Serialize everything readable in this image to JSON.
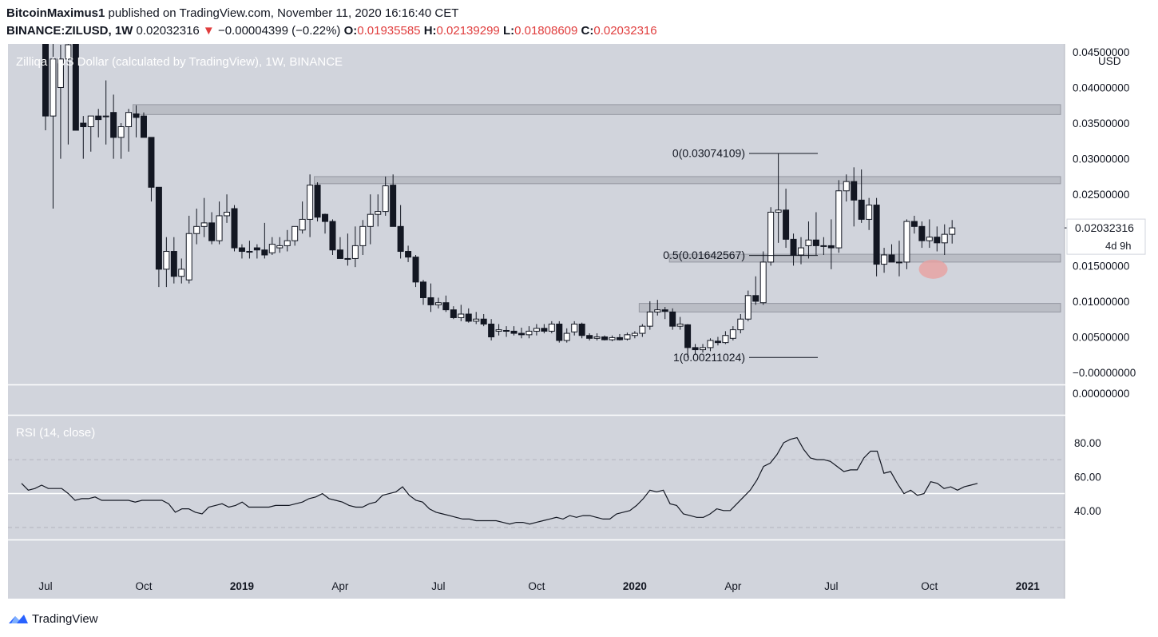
{
  "header": {
    "publisher": "BitcoinMaximus1",
    "published_text": "published on TradingView.com, November 11, 2020 16:16:40 CET",
    "symbol": "BINANCE:ZILUSD, 1W",
    "last": "0.02032316",
    "change_arrow": "▼",
    "change": "−0.00004399 (−0.22%)",
    "o_label": "O:",
    "o_value": "0.01935585",
    "h_label": "H:",
    "h_value": "0.02139299",
    "l_label": "L:",
    "l_value": "0.01808609",
    "c_label": "C:",
    "c_value": "0.02032316"
  },
  "footer": {
    "brand": "TradingView",
    "icon": "tradingview-logo-icon"
  },
  "chart_data": [
    {
      "type": "candlestick",
      "title": "Zilliqa / US Dollar (calculated by TradingView), 1W, BINANCE",
      "y_unit": "USD",
      "ylim": [
        -0.001,
        0.046
      ],
      "y_ticks": [
        0.045,
        0.04,
        0.035,
        0.03,
        0.025,
        0.02,
        0.015,
        0.01,
        0.005,
        0.0
      ],
      "y_tick_labels": [
        "0.04500000",
        "0.04000000",
        "0.03500000",
        "0.03000000",
        "0.02500000",
        "0.02000000",
        "0.01500000",
        "0.01000000",
        "0.00500000",
        "−0.00000000"
      ],
      "second_pane_label": "0.00000000",
      "current_price_label": "0.02032316",
      "countdown_label": "4d 9h",
      "x_ticks": [
        "Jul",
        "Oct",
        "2019",
        "Apr",
        "Jul",
        "Oct",
        "2020",
        "Apr",
        "Jul",
        "Oct",
        "2021"
      ],
      "x_tick_weeks": [
        0,
        13,
        26,
        39,
        52,
        65,
        78,
        91,
        104,
        117,
        130
      ],
      "candles": [
        [
          0.049,
          0.052,
          0.034,
          0.036
        ],
        [
          0.036,
          0.049,
          0.023,
          0.044
        ],
        [
          0.04,
          0.046,
          0.03,
          0.044
        ],
        [
          0.044,
          0.052,
          0.032,
          0.046
        ],
        [
          0.052,
          0.056,
          0.034,
          0.034
        ],
        [
          0.035,
          0.036,
          0.03,
          0.0345
        ],
        [
          0.0345,
          0.036,
          0.031,
          0.036
        ],
        [
          0.036,
          0.037,
          0.033,
          0.0355
        ],
        [
          0.036,
          0.041,
          0.032,
          0.036
        ],
        [
          0.0365,
          0.039,
          0.03,
          0.033
        ],
        [
          0.033,
          0.035,
          0.03,
          0.0345
        ],
        [
          0.0345,
          0.037,
          0.031,
          0.0365
        ],
        [
          0.0363,
          0.0375,
          0.033,
          0.0358
        ],
        [
          0.036,
          0.0365,
          0.033,
          0.033
        ],
        [
          0.033,
          0.033,
          0.024,
          0.026
        ],
        [
          0.026,
          0.026,
          0.012,
          0.0145
        ],
        [
          0.0145,
          0.019,
          0.012,
          0.017
        ],
        [
          0.017,
          0.019,
          0.0125,
          0.0135
        ],
        [
          0.0135,
          0.016,
          0.0125,
          0.0145
        ],
        [
          0.013,
          0.022,
          0.0125,
          0.0195
        ],
        [
          0.0195,
          0.023,
          0.018,
          0.0205
        ],
        [
          0.0205,
          0.0245,
          0.019,
          0.021
        ],
        [
          0.021,
          0.0225,
          0.018,
          0.0185
        ],
        [
          0.0185,
          0.024,
          0.018,
          0.022
        ],
        [
          0.022,
          0.025,
          0.021,
          0.0225
        ],
        [
          0.023,
          0.0235,
          0.017,
          0.0175
        ],
        [
          0.0175,
          0.018,
          0.016,
          0.017
        ],
        [
          0.017,
          0.0185,
          0.016,
          0.017
        ],
        [
          0.0175,
          0.018,
          0.016,
          0.0172
        ],
        [
          0.0172,
          0.021,
          0.016,
          0.0165
        ],
        [
          0.0168,
          0.019,
          0.0165,
          0.018
        ],
        [
          0.0175,
          0.019,
          0.0168,
          0.0178
        ],
        [
          0.0178,
          0.02,
          0.017,
          0.0185
        ],
        [
          0.0185,
          0.0205,
          0.0178,
          0.0205
        ],
        [
          0.02,
          0.024,
          0.0195,
          0.0215
        ],
        [
          0.0215,
          0.0278,
          0.019,
          0.0263
        ],
        [
          0.0263,
          0.0267,
          0.0212,
          0.0218
        ],
        [
          0.0222,
          0.0223,
          0.0195,
          0.0212
        ],
        [
          0.0212,
          0.0215,
          0.0165,
          0.0172
        ],
        [
          0.0172,
          0.019,
          0.016,
          0.016
        ],
        [
          0.016,
          0.0195,
          0.015,
          0.016
        ],
        [
          0.016,
          0.0205,
          0.0148,
          0.0178
        ],
        [
          0.0178,
          0.0214,
          0.0165,
          0.0205
        ],
        [
          0.0205,
          0.025,
          0.018,
          0.0222
        ],
        [
          0.0222,
          0.025,
          0.0205,
          0.0226
        ],
        [
          0.0226,
          0.0275,
          0.022,
          0.0262
        ],
        [
          0.0263,
          0.0278,
          0.0205,
          0.0205
        ],
        [
          0.0205,
          0.0235,
          0.016,
          0.017
        ],
        [
          0.017,
          0.0178,
          0.0155,
          0.0162
        ],
        [
          0.0162,
          0.0165,
          0.012,
          0.0127
        ],
        [
          0.0127,
          0.013,
          0.0095,
          0.0105
        ],
        [
          0.0105,
          0.0125,
          0.0085,
          0.0095
        ],
        [
          0.0095,
          0.0105,
          0.009,
          0.0098
        ],
        [
          0.0098,
          0.0108,
          0.0085,
          0.0088
        ],
        [
          0.0088,
          0.0093,
          0.0075,
          0.0077
        ],
        [
          0.0077,
          0.0095,
          0.0072,
          0.0082
        ],
        [
          0.0082,
          0.009,
          0.007,
          0.0072
        ],
        [
          0.0072,
          0.0085,
          0.0068,
          0.0075
        ],
        [
          0.0075,
          0.0082,
          0.0065,
          0.0068
        ],
        [
          0.0068,
          0.0075,
          0.0045,
          0.005
        ],
        [
          0.0058,
          0.0068,
          0.0052,
          0.006
        ],
        [
          0.0059,
          0.0065,
          0.005,
          0.0058
        ],
        [
          0.0058,
          0.0065,
          0.0052,
          0.0055
        ],
        [
          0.0055,
          0.0063,
          0.0048,
          0.0053
        ],
        [
          0.0053,
          0.0065,
          0.0048,
          0.0058
        ],
        [
          0.0058,
          0.0068,
          0.0052,
          0.0062
        ],
        [
          0.0062,
          0.0068,
          0.0055,
          0.0058
        ],
        [
          0.0058,
          0.0072,
          0.0055,
          0.0068
        ],
        [
          0.0068,
          0.0072,
          0.0042,
          0.0045
        ],
        [
          0.0045,
          0.0062,
          0.0042,
          0.0055
        ],
        [
          0.0057,
          0.0072,
          0.0052,
          0.0068
        ],
        [
          0.0068,
          0.007,
          0.0048,
          0.0052
        ],
        [
          0.0052,
          0.0055,
          0.0045,
          0.0048
        ],
        [
          0.0048,
          0.0055,
          0.0045,
          0.005
        ],
        [
          0.005,
          0.0052,
          0.0045,
          0.0046
        ],
        [
          0.0046,
          0.0052,
          0.0044,
          0.0049
        ],
        [
          0.0049,
          0.0054,
          0.0045,
          0.0046
        ],
        [
          0.0047,
          0.0056,
          0.0045,
          0.0053
        ],
        [
          0.0052,
          0.0058,
          0.0048,
          0.0055
        ],
        [
          0.0055,
          0.0068,
          0.005,
          0.0065
        ],
        [
          0.0065,
          0.01,
          0.006,
          0.0085
        ],
        [
          0.0085,
          0.0102,
          0.008,
          0.0088
        ],
        [
          0.0088,
          0.0092,
          0.0075,
          0.0086
        ],
        [
          0.0085,
          0.009,
          0.006,
          0.0065
        ],
        [
          0.0065,
          0.0078,
          0.006,
          0.0068
        ],
        [
          0.0067,
          0.0068,
          0.0021,
          0.0035
        ],
        [
          0.0035,
          0.004,
          0.0025,
          0.0032
        ],
        [
          0.0032,
          0.004,
          0.0028,
          0.0035
        ],
        [
          0.0035,
          0.0048,
          0.003,
          0.0045
        ],
        [
          0.0044,
          0.005,
          0.0038,
          0.0042
        ],
        [
          0.0042,
          0.0058,
          0.004,
          0.0052
        ],
        [
          0.0048,
          0.0065,
          0.0045,
          0.006
        ],
        [
          0.006,
          0.0082,
          0.0055,
          0.0075
        ],
        [
          0.0075,
          0.0115,
          0.0072,
          0.0108
        ],
        [
          0.0108,
          0.0135,
          0.0095,
          0.01
        ],
        [
          0.0098,
          0.017,
          0.0095,
          0.0155
        ],
        [
          0.0155,
          0.0232,
          0.015,
          0.0225
        ],
        [
          0.0225,
          0.0307,
          0.0182,
          0.0228
        ],
        [
          0.0228,
          0.0258,
          0.0175,
          0.0187
        ],
        [
          0.0187,
          0.0195,
          0.015,
          0.0165
        ],
        [
          0.0165,
          0.019,
          0.0152,
          0.0175
        ],
        [
          0.0178,
          0.0212,
          0.016,
          0.0186
        ],
        [
          0.0186,
          0.0225,
          0.0165,
          0.0178
        ],
        [
          0.0178,
          0.019,
          0.0165,
          0.0178
        ],
        [
          0.0178,
          0.0215,
          0.0145,
          0.0175
        ],
        [
          0.0175,
          0.027,
          0.0168,
          0.0255
        ],
        [
          0.0255,
          0.0278,
          0.024,
          0.0268
        ],
        [
          0.0268,
          0.0288,
          0.0205,
          0.0242
        ],
        [
          0.0242,
          0.0285,
          0.021,
          0.0215
        ],
        [
          0.0215,
          0.0245,
          0.02,
          0.0235
        ],
        [
          0.0235,
          0.0245,
          0.0135,
          0.0152
        ],
        [
          0.0152,
          0.0175,
          0.014,
          0.0165
        ],
        [
          0.0165,
          0.018,
          0.0155,
          0.0155
        ],
        [
          0.0155,
          0.0185,
          0.0135,
          0.0155
        ],
        [
          0.0155,
          0.0215,
          0.0145,
          0.0212
        ],
        [
          0.0212,
          0.022,
          0.0195,
          0.0205
        ],
        [
          0.0205,
          0.0212,
          0.0175,
          0.0185
        ],
        [
          0.0185,
          0.0215,
          0.0175,
          0.019
        ],
        [
          0.019,
          0.0205,
          0.017,
          0.0182
        ],
        [
          0.0182,
          0.0208,
          0.0165,
          0.0194
        ],
        [
          0.0194,
          0.0214,
          0.0181,
          0.0203
        ]
      ],
      "horizontal_zones": [
        {
          "from": 0.0362,
          "to": 0.0376,
          "start_week": 12
        },
        {
          "from": 0.0265,
          "to": 0.0275,
          "start_week": 36
        },
        {
          "from": 0.0155,
          "to": 0.0166,
          "start_week": 83
        },
        {
          "from": 0.0085,
          "to": 0.0097,
          "start_week": 79
        }
      ],
      "fibonacci": [
        {
          "level_label": "0(0.03074109)",
          "price": 0.03074109
        },
        {
          "level_label": "0.5(0.01642567)",
          "price": 0.01642567
        },
        {
          "level_label": "1(0.00211024)",
          "price": 0.00211024
        }
      ],
      "highlight_circle": {
        "week": 117.5,
        "price": 0.0145
      },
      "colors": {
        "bull": "#ffffff",
        "bear": "#131722",
        "zone": "#b2b5be",
        "highlight": "#e8a0a0",
        "background": "#d1d4dc"
      }
    },
    {
      "type": "line",
      "title": "RSI (14, close)",
      "ylim": [
        5,
        96
      ],
      "y_ticks": [
        80,
        60,
        40
      ],
      "y_tick_labels": [
        "80.00",
        "60.00",
        "40.00"
      ],
      "bands": [
        70,
        30
      ],
      "midline": 50,
      "values": [
        56,
        52,
        53,
        55,
        53,
        53,
        53,
        50,
        46,
        47,
        47,
        48,
        46,
        46,
        46,
        46,
        46,
        45,
        46,
        46,
        46,
        46,
        44,
        39,
        41,
        41,
        39,
        38,
        42,
        43,
        44,
        42,
        43,
        45,
        42,
        42,
        42,
        42,
        43,
        43,
        43,
        44,
        45,
        47,
        48,
        50,
        47,
        46,
        45,
        43,
        42,
        42,
        44,
        45,
        49,
        50,
        51,
        54,
        49,
        46,
        45,
        41,
        39,
        38,
        37,
        36,
        35,
        35,
        34,
        34,
        34,
        34,
        33,
        32,
        33,
        33,
        32,
        33,
        34,
        35,
        36,
        35,
        37,
        36,
        37,
        37,
        36,
        35,
        35,
        38,
        39,
        40,
        43,
        47,
        52,
        51,
        52,
        44,
        43,
        38,
        37,
        36,
        36,
        38,
        41,
        40,
        40,
        44,
        48,
        52,
        58,
        66,
        68,
        73,
        80,
        82,
        83,
        76,
        71,
        70,
        70,
        69,
        66,
        63,
        64,
        64,
        71,
        75,
        75,
        62,
        63,
        56,
        50,
        52,
        49,
        50,
        57,
        56,
        53,
        54,
        52,
        54,
        55,
        56
      ]
    }
  ]
}
